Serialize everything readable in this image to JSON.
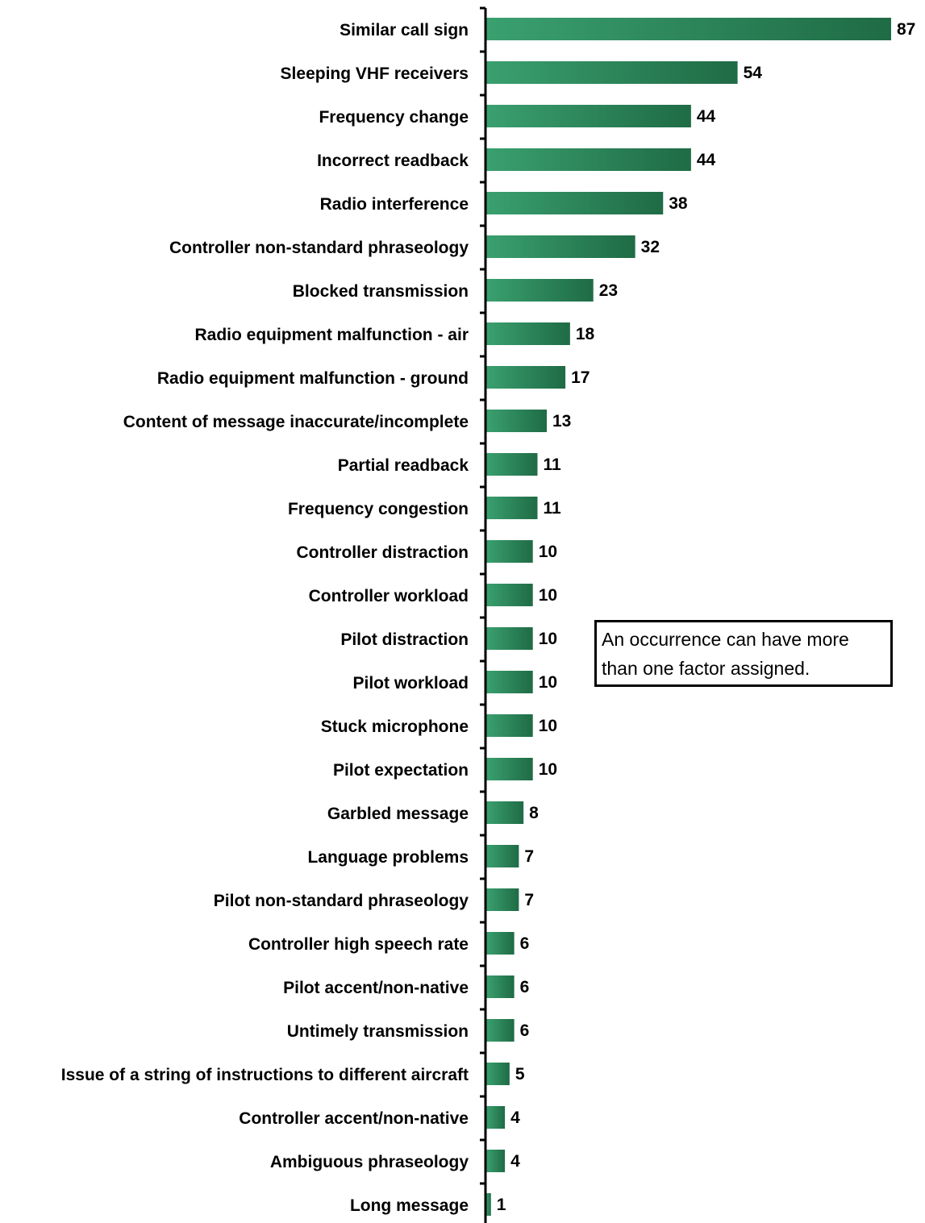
{
  "chart_data": {
    "type": "bar",
    "orientation": "horizontal",
    "categories": [
      "Similar call sign",
      "Sleeping VHF receivers",
      "Frequency change",
      "Incorrect readback",
      "Radio interference",
      "Controller non-standard phraseology",
      "Blocked transmission",
      "Radio equipment malfunction - air",
      "Radio equipment malfunction - ground",
      "Content of message inaccurate/incomplete",
      "Partial readback",
      "Frequency congestion",
      "Controller distraction",
      "Controller workload",
      "Pilot distraction",
      "Pilot workload",
      "Stuck microphone",
      "Pilot expectation",
      "Garbled message",
      "Language problems",
      "Pilot non-standard phraseology",
      "Controller high speech rate",
      "Pilot accent/non-native",
      "Untimely transmission",
      "Issue of a string of instructions to different aircraft",
      "Controller accent/non-native",
      "Ambiguous phraseology",
      "Long message"
    ],
    "values": [
      87,
      54,
      44,
      44,
      38,
      32,
      23,
      18,
      17,
      13,
      11,
      11,
      10,
      10,
      10,
      10,
      10,
      10,
      8,
      7,
      7,
      6,
      6,
      6,
      5,
      4,
      4,
      1
    ],
    "xlim": [
      0,
      87
    ],
    "grid": false,
    "legend": "none",
    "colors": {
      "bar_light": "#3aa06f",
      "bar_dark": "#1f6b45",
      "axis": "#000000"
    },
    "note": "An occurrence can have more than one factor assigned."
  }
}
